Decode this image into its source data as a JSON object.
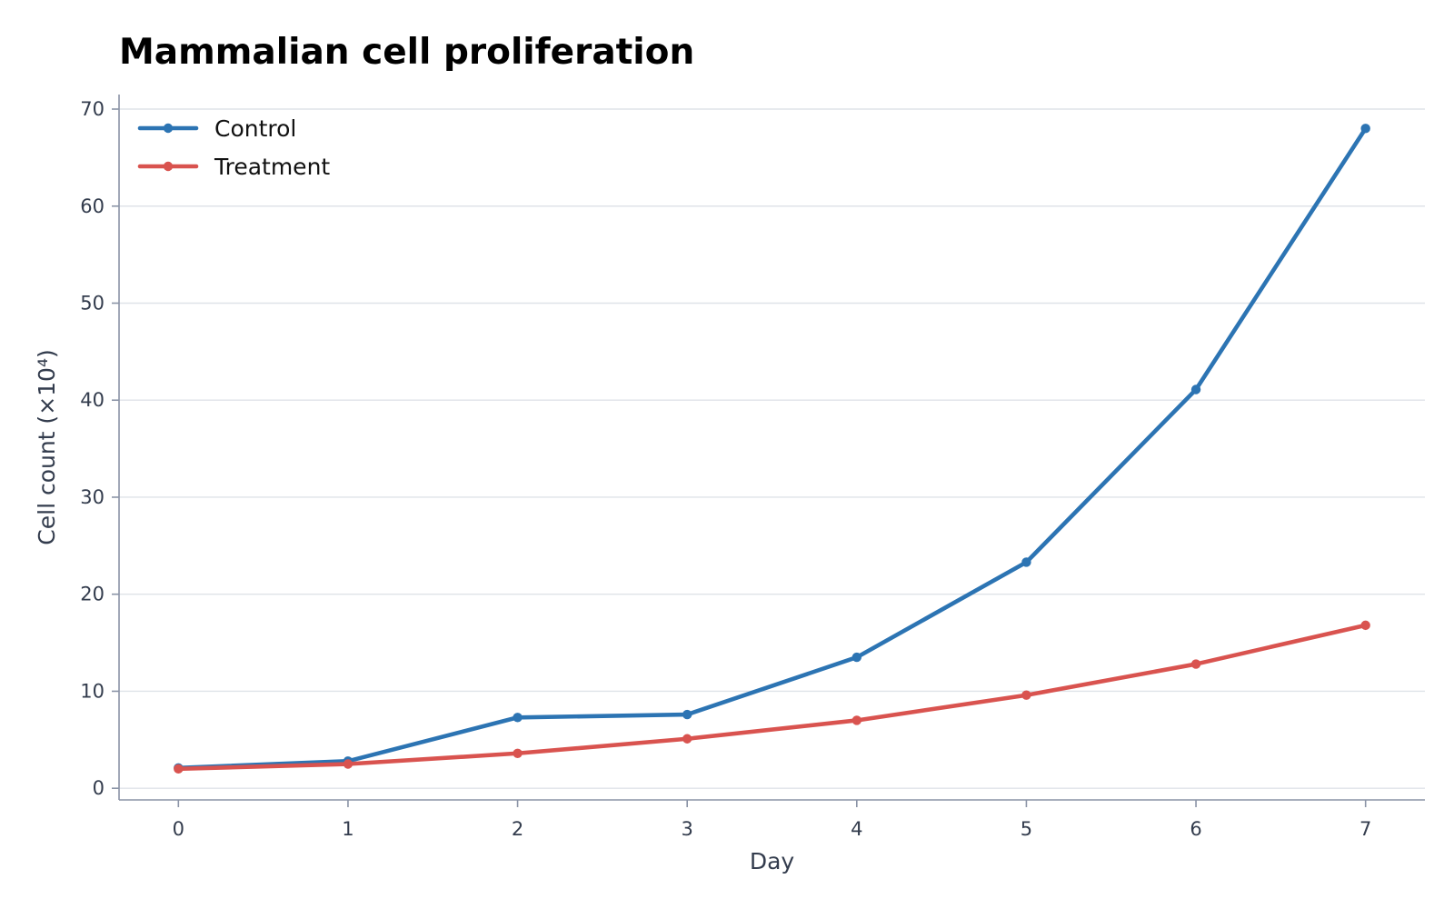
{
  "chart_data": {
    "type": "line",
    "title": "Mammalian cell proliferation",
    "xlabel": "Day",
    "ylabel": "Cell count (×10⁴)",
    "x": [
      0,
      1,
      2,
      3,
      4,
      5,
      6,
      7
    ],
    "xlim": [
      -0.35,
      7.35
    ],
    "ylim": [
      -1.2,
      71.5
    ],
    "xticks": [
      0,
      1,
      2,
      3,
      4,
      5,
      6,
      7
    ],
    "yticks": [
      0,
      10,
      20,
      30,
      40,
      50,
      60,
      70
    ],
    "grid": "horizontal",
    "legend_position": "top-left",
    "series": [
      {
        "name": "Control",
        "color": "#2c74b3",
        "values": [
          2.1,
          2.8,
          7.3,
          7.6,
          13.5,
          23.3,
          41.1,
          68.0
        ]
      },
      {
        "name": "Treatment",
        "color": "#d9534f",
        "values": [
          2.0,
          2.5,
          3.6,
          5.1,
          7.0,
          9.6,
          12.8,
          16.8
        ]
      }
    ]
  }
}
